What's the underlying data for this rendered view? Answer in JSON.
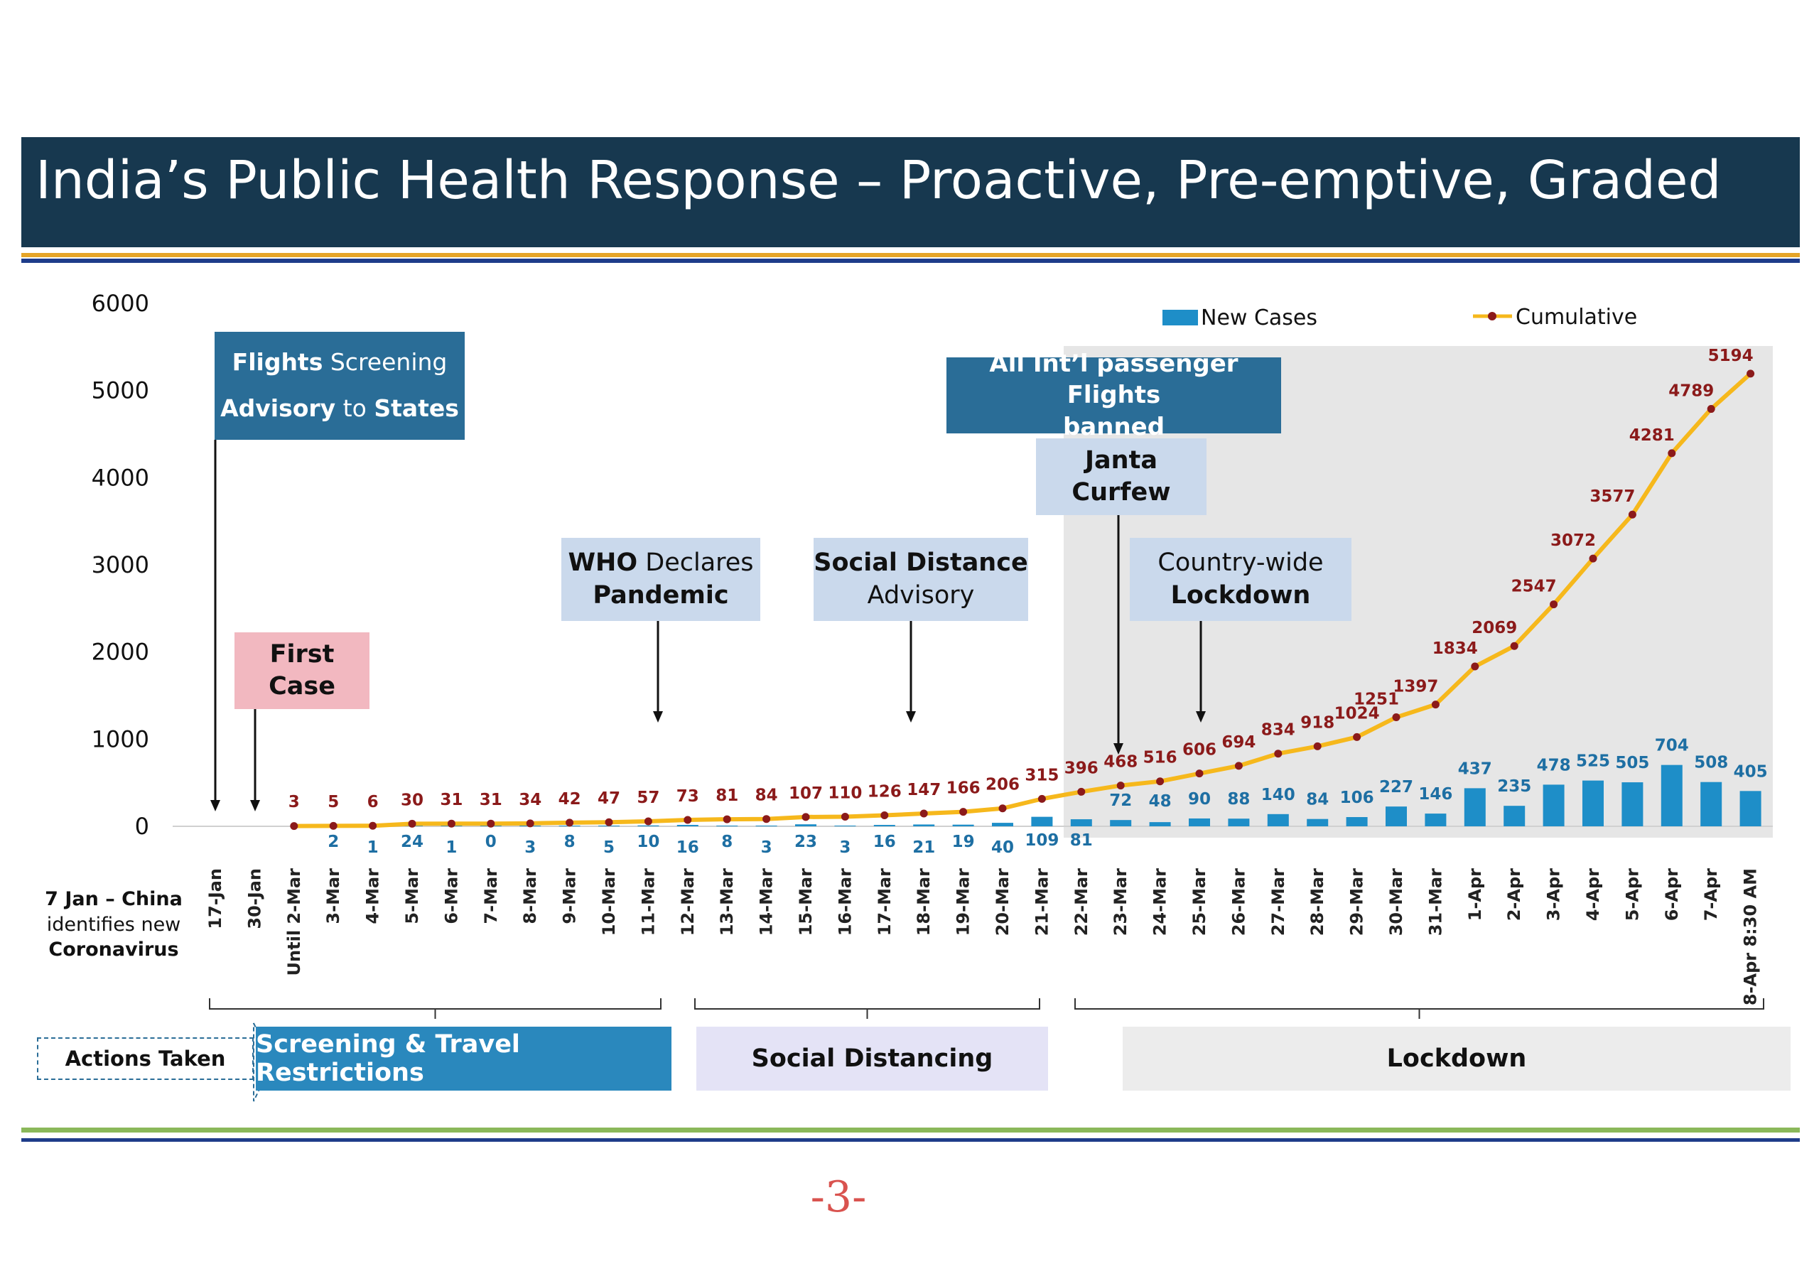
{
  "title": "India’s Public Health Response – Proactive, Pre-emptive, Graded",
  "colors": {
    "title_bg": "#17384f",
    "bar": "#1e8ec8",
    "line": "#f6b81c",
    "dot": "#8b1a1a",
    "lockdown_shade": "#e6e6e6"
  },
  "chart_data": {
    "type": "bar",
    "ylim": [
      0,
      6000
    ],
    "yticks": [
      "0",
      "1000",
      "2000",
      "3000",
      "4000",
      "5000",
      "6000"
    ],
    "legend": {
      "position": "top-right",
      "entries": [
        "New Cases",
        "Cumulative"
      ]
    },
    "categories": [
      "17-Jan",
      "30-Jan",
      "Until 2-Mar",
      "3-Mar",
      "4-Mar",
      "5-Mar",
      "6-Mar",
      "7-Mar",
      "8-Mar",
      "9-Mar",
      "10-Mar",
      "11-Mar",
      "12-Mar",
      "13-Mar",
      "14-Mar",
      "15-Mar",
      "16-Mar",
      "17-Mar",
      "18-Mar",
      "19-Mar",
      "20-Mar",
      "21-Mar",
      "22-Mar",
      "23-Mar",
      "24-Mar",
      "25-Mar",
      "26-Mar",
      "27-Mar",
      "28-Mar",
      "29-Mar",
      "30-Mar",
      "31-Mar",
      "1-Apr",
      "2-Apr",
      "3-Apr",
      "4-Apr",
      "5-Apr",
      "6-Apr",
      "7-Apr",
      "8-Apr 8:30 AM"
    ],
    "series": [
      {
        "name": "New Cases",
        "type": "bar",
        "values": [
          null,
          null,
          null,
          2,
          1,
          24,
          1,
          0,
          3,
          8,
          5,
          10,
          16,
          8,
          3,
          23,
          3,
          16,
          21,
          19,
          40,
          109,
          81,
          72,
          48,
          90,
          88,
          140,
          84,
          106,
          227,
          146,
          437,
          235,
          478,
          525,
          505,
          704,
          508,
          405
        ]
      },
      {
        "name": "Cumulative",
        "type": "line",
        "values": [
          null,
          null,
          3,
          5,
          6,
          30,
          31,
          31,
          34,
          42,
          47,
          57,
          73,
          81,
          84,
          107,
          110,
          126,
          147,
          166,
          206,
          315,
          396,
          468,
          516,
          606,
          694,
          834,
          918,
          1024,
          1251,
          1397,
          1834,
          2069,
          2547,
          3072,
          3577,
          4281,
          4789,
          5194
        ]
      }
    ]
  },
  "annotations": {
    "flights_screening": {
      "flights": "Flights",
      "screening": "Screening",
      "advisory": "Advisory",
      "to": "to",
      "states": "States"
    },
    "first_case": {
      "line1": "First",
      "line2": "Case"
    },
    "who": {
      "who": "WHO",
      "declares": "Declares",
      "pandemic": "Pandemic"
    },
    "social_advisory": {
      "line1": "Social Distance",
      "line2": "Advisory"
    },
    "intl_flights": {
      "line1": "All Int’l passenger Flights",
      "line2": "banned"
    },
    "janta": {
      "line1": "Janta",
      "line2": "Curfew"
    },
    "lockdown_note": {
      "line1": "Country-wide",
      "line2": "Lockdown"
    }
  },
  "china_note": {
    "line1": "7 Jan – China",
    "line2": "identifies new",
    "line3": "Coronavirus"
  },
  "actions": {
    "label": "Actions Taken",
    "phases": [
      "Screening & Travel Restrictions",
      "Social Distancing",
      "Lockdown"
    ]
  },
  "page_number": "-3-"
}
